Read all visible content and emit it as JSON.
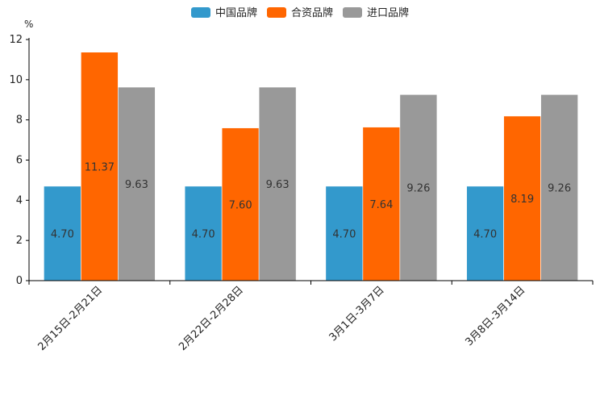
{
  "chart_data": {
    "type": "bar",
    "ylabel": "%",
    "ylim": [
      0,
      12
    ],
    "yticks": [
      0,
      2,
      4,
      6,
      8,
      10,
      12
    ],
    "categories": [
      "2月15日-2月21日",
      "2月22日-2月28日",
      "3月1日-3月7日",
      "3月8日-3月14日"
    ],
    "series": [
      {
        "name": "中国品牌",
        "color": "#3399CC",
        "values": [
          4.7,
          4.7,
          4.7,
          4.7
        ],
        "labels": [
          "4.70",
          "4.70",
          "4.70",
          "4.70"
        ]
      },
      {
        "name": "合资品牌",
        "color": "#FF6600",
        "values": [
          11.37,
          7.6,
          7.64,
          8.19
        ],
        "labels": [
          "11.37",
          "7.60",
          "7.64",
          "8.19"
        ]
      },
      {
        "name": "进口品牌",
        "color": "#999999",
        "values": [
          9.63,
          9.63,
          9.26,
          9.26
        ],
        "labels": [
          "9.63",
          "9.63",
          "9.26",
          "9.26"
        ]
      }
    ],
    "legend_position": "top-center",
    "grid": false
  }
}
